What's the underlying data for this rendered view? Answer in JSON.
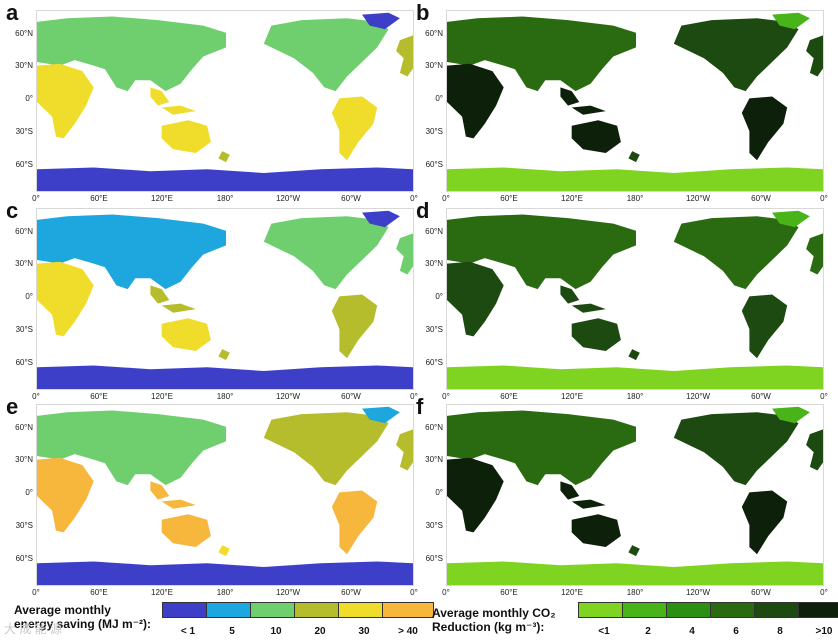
{
  "panels": [
    {
      "letter": "a",
      "scheme": "energy",
      "bias": 0.55
    },
    {
      "letter": "b",
      "scheme": "co2",
      "bias": 0.85
    },
    {
      "letter": "c",
      "scheme": "energy",
      "bias": 0.25
    },
    {
      "letter": "d",
      "scheme": "co2",
      "bias": 0.6
    },
    {
      "letter": "e",
      "scheme": "energy",
      "bias": 0.7
    },
    {
      "letter": "f",
      "scheme": "co2",
      "bias": 0.9
    }
  ],
  "axes": {
    "lat_labels": [
      "60°N",
      "30°N",
      "0°",
      "30°S",
      "60°S"
    ],
    "lon_labels": [
      "0°",
      "60°E",
      "120°E",
      "180°",
      "120°W",
      "60°W",
      "0°"
    ]
  },
  "legend_energy": {
    "title_line1": "Average monthly",
    "title_line2": "energy saving (MJ m⁻²):",
    "labels": [
      "< 1",
      "5",
      "10",
      "20",
      "30",
      "> 40"
    ],
    "colors": [
      "#3d3fc9",
      "#1ea7de",
      "#6fcf6f",
      "#b6bd2c",
      "#f0dd2b",
      "#f6b73c"
    ]
  },
  "legend_co2": {
    "title_line1": "Average monthly CO₂",
    "title_line2": "Reduction (kg m⁻³):",
    "labels": [
      "<1",
      "2",
      "4",
      "6",
      "8",
      ">10"
    ],
    "colors": [
      "#7fd321",
      "#48b41a",
      "#2a8f12",
      "#2a6b12",
      "#1d4a10",
      "#0d200a"
    ]
  },
  "watermark": "大 成 能 源"
}
